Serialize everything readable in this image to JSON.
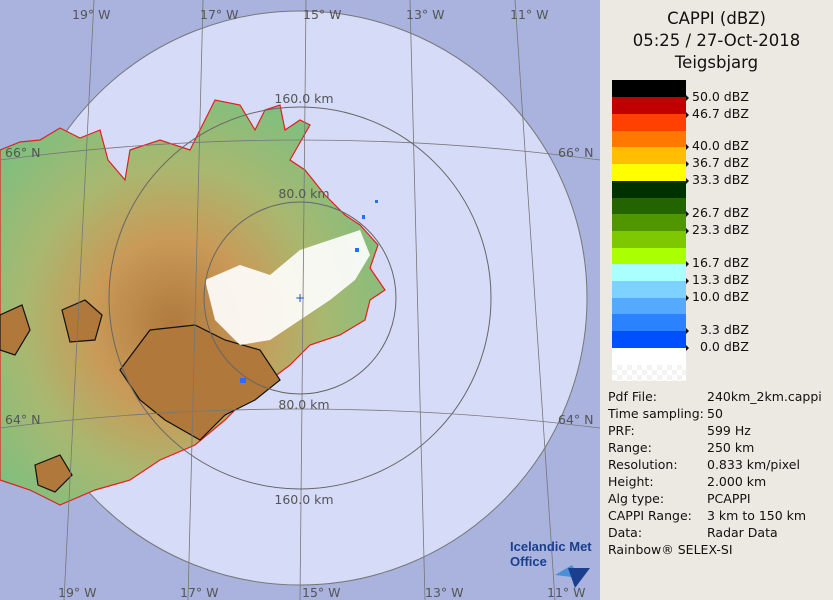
{
  "header": {
    "title": "CAPPI (dBZ)",
    "datetime": "05:25 / 27-Oct-2018",
    "station": "Teigsbjarg"
  },
  "legend": {
    "colors": [
      "#000000",
      "#c00000",
      "#ff4000",
      "#ff7800",
      "#ffbe00",
      "#ffff00",
      "#003200",
      "#246400",
      "#509600",
      "#7dc800",
      "#aaff00",
      "#aaffff",
      "#7dd2ff",
      "#55aaff",
      "#2a82ff",
      "#0050ff",
      "#ffffff"
    ],
    "labels": [
      "50.0 dBZ",
      "46.7 dBZ",
      "40.0 dBZ",
      "36.7 dBZ",
      "33.3 dBZ",
      "26.7 dBZ",
      "23.3 dBZ",
      "16.7 dBZ",
      "13.3 dBZ",
      "10.0 dBZ",
      "3.3 dBZ",
      "0.0 dBZ"
    ]
  },
  "info": [
    {
      "key": "Pdf File:",
      "value": "240km_2km.cappi"
    },
    {
      "key": "Time sampling:",
      "value": "50"
    },
    {
      "key": "PRF:",
      "value": "599 Hz"
    },
    {
      "key": "Range:",
      "value": "250 km"
    },
    {
      "key": "Resolution:",
      "value": "0.833 km/pixel"
    },
    {
      "key": "Height:",
      "value": "2.000 km"
    },
    {
      "key": "Alg type:",
      "value": "PCAPPI"
    },
    {
      "key": "CAPPI Range:",
      "value": "3 km to 150 km"
    },
    {
      "key": "Data:",
      "value": "Radar Data"
    }
  ],
  "credit": "Rainbow® SELEX-SI",
  "map": {
    "longitudes_top": [
      "19° W",
      "17° W",
      "15° W",
      "13° W",
      "11° W"
    ],
    "longitudes_bottom": [
      "19° W",
      "17° W",
      "15° W",
      "13° W",
      "11° W"
    ],
    "latitude_66_left": "66° N",
    "latitude_66_right": "66° N",
    "latitude_64_left": "64° N",
    "latitude_64_right": "64° N",
    "range_rings": {
      "r80_top": "80.0 km",
      "r160_top": "160.0 km",
      "r80_bottom": "80.0 km",
      "r160_bottom": "160.0 km"
    },
    "logo_line1": "Icelandic Met",
    "logo_line2": "Office",
    "outside_color": "#a9b3dd",
    "coverage_color": "#d6dbf8"
  }
}
